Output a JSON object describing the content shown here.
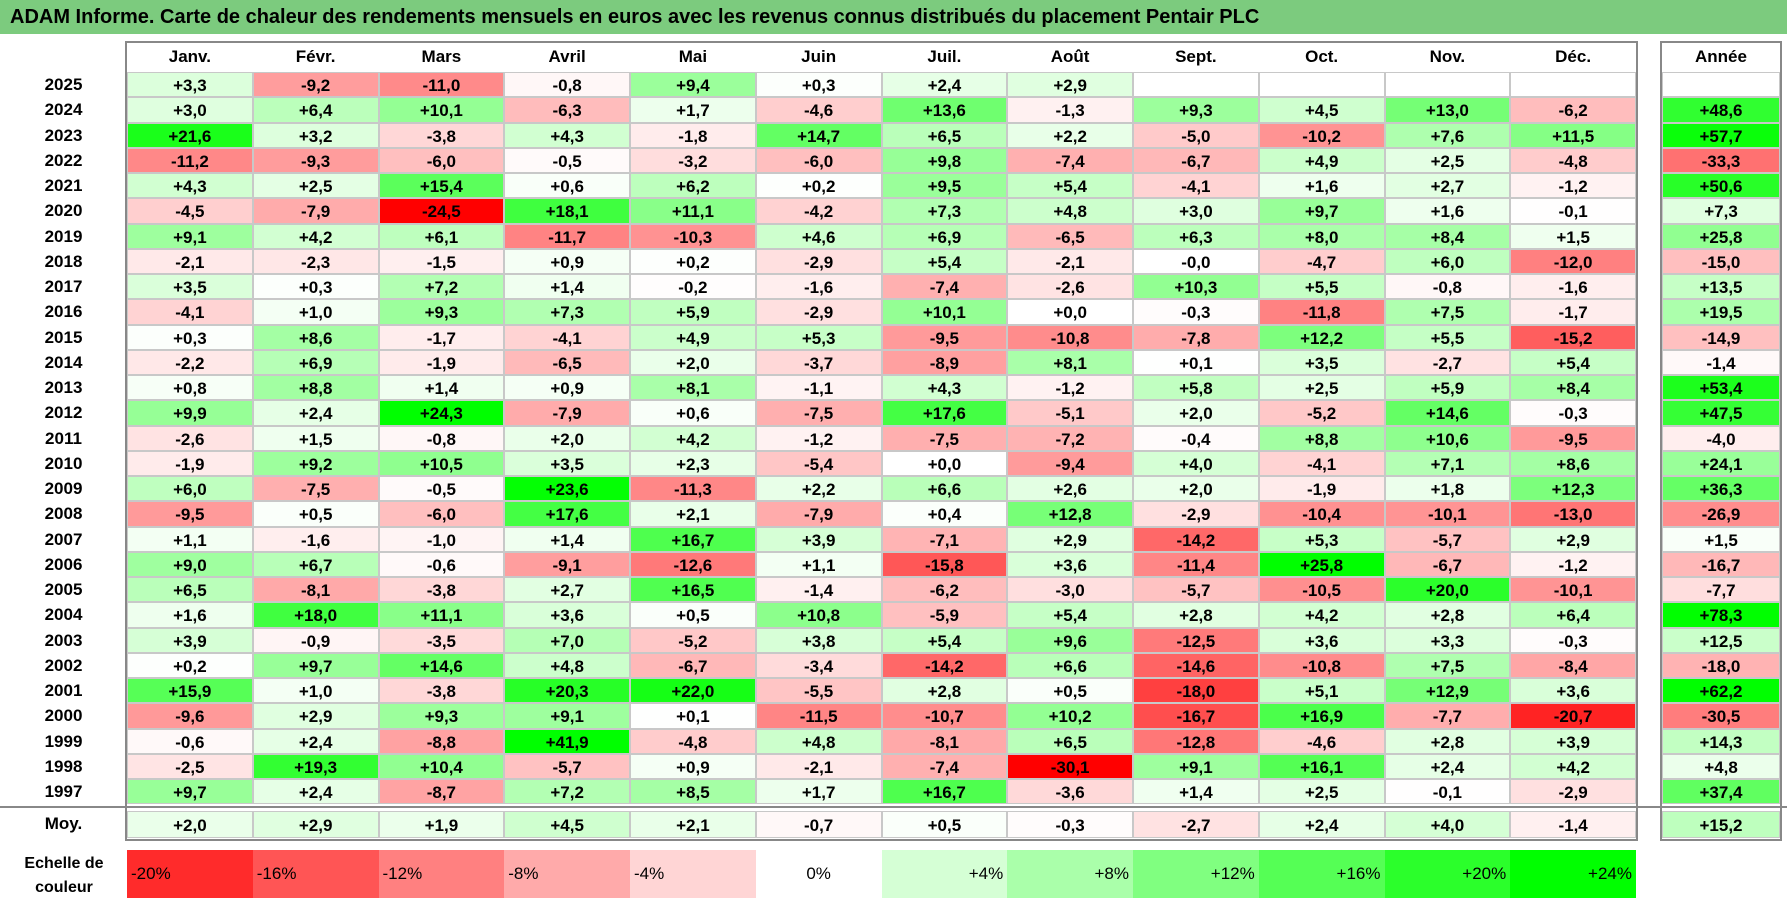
{
  "title": "ADAM Informe. Carte de chaleur des rendements mensuels en euros avec les revenus connus distribués du placement Pentair PLC",
  "chart_data": {
    "type": "heatmap",
    "title": "ADAM Informe. Carte de chaleur des rendements mensuels en euros avec les revenus connus distribués du placement Pentair PLC",
    "columns": [
      "Janv.",
      "Févr.",
      "Mars",
      "Avril",
      "Mai",
      "Juin",
      "Juil.",
      "Août",
      "Sept.",
      "Oct.",
      "Nov.",
      "Déc."
    ],
    "year_column": "Année",
    "rows": [
      {
        "label": "2025",
        "values": [
          "+3,3",
          "-9,2",
          "-11,0",
          "-0,8",
          "+9,4",
          "+0,3",
          "+2,4",
          "+2,9",
          "",
          "",
          "",
          ""
        ],
        "year": ""
      },
      {
        "label": "2024",
        "values": [
          "+3,0",
          "+6,4",
          "+10,1",
          "-6,3",
          "+1,7",
          "-4,6",
          "+13,6",
          "-1,3",
          "+9,3",
          "+4,5",
          "+13,0",
          "-6,2"
        ],
        "year": "+48,6"
      },
      {
        "label": "2023",
        "values": [
          "+21,6",
          "+3,2",
          "-3,8",
          "+4,3",
          "-1,8",
          "+14,7",
          "+6,5",
          "+2,2",
          "-5,0",
          "-10,2",
          "+7,6",
          "+11,5"
        ],
        "year": "+57,7"
      },
      {
        "label": "2022",
        "values": [
          "-11,2",
          "-9,3",
          "-6,0",
          "-0,5",
          "-3,2",
          "-6,0",
          "+9,8",
          "-7,4",
          "-6,7",
          "+4,9",
          "+2,5",
          "-4,8"
        ],
        "year": "-33,3"
      },
      {
        "label": "2021",
        "values": [
          "+4,3",
          "+2,5",
          "+15,4",
          "+0,6",
          "+6,2",
          "+0,2",
          "+9,5",
          "+5,4",
          "-4,1",
          "+1,6",
          "+2,7",
          "-1,2"
        ],
        "year": "+50,6"
      },
      {
        "label": "2020",
        "values": [
          "-4,5",
          "-7,9",
          "-24,5",
          "+18,1",
          "+11,1",
          "-4,2",
          "+7,3",
          "+4,8",
          "+3,0",
          "+9,7",
          "+1,6",
          "-0,1"
        ],
        "year": "+7,3"
      },
      {
        "label": "2019",
        "values": [
          "+9,1",
          "+4,2",
          "+6,1",
          "-11,7",
          "-10,3",
          "+4,6",
          "+6,9",
          "-6,5",
          "+6,3",
          "+8,0",
          "+8,4",
          "+1,5"
        ],
        "year": "+25,8"
      },
      {
        "label": "2018",
        "values": [
          "-2,1",
          "-2,3",
          "-1,5",
          "+0,9",
          "+0,2",
          "-2,9",
          "+5,4",
          "-2,1",
          "-0,0",
          "-4,7",
          "+6,0",
          "-12,0"
        ],
        "year": "-15,0"
      },
      {
        "label": "2017",
        "values": [
          "+3,5",
          "+0,3",
          "+7,2",
          "+1,4",
          "-0,2",
          "-1,6",
          "-7,4",
          "-2,6",
          "+10,3",
          "+5,5",
          "-0,8",
          "-1,6"
        ],
        "year": "+13,5"
      },
      {
        "label": "2016",
        "values": [
          "-4,1",
          "+1,0",
          "+9,3",
          "+7,3",
          "+5,9",
          "-2,9",
          "+10,1",
          "+0,0",
          "-0,3",
          "-11,8",
          "+7,5",
          "-1,7"
        ],
        "year": "+19,5"
      },
      {
        "label": "2015",
        "values": [
          "+0,3",
          "+8,6",
          "-1,7",
          "-4,1",
          "+4,9",
          "+5,3",
          "-9,5",
          "-10,8",
          "-7,8",
          "+12,2",
          "+5,5",
          "-15,2"
        ],
        "year": "-14,9"
      },
      {
        "label": "2014",
        "values": [
          "-2,2",
          "+6,9",
          "-1,9",
          "-6,5",
          "+2,0",
          "-3,7",
          "-8,9",
          "+8,1",
          "+0,1",
          "+3,5",
          "-2,7",
          "+5,4"
        ],
        "year": "-1,4"
      },
      {
        "label": "2013",
        "values": [
          "+0,8",
          "+8,8",
          "+1,4",
          "+0,9",
          "+8,1",
          "-1,1",
          "+4,3",
          "-1,2",
          "+5,8",
          "+2,5",
          "+5,9",
          "+8,4"
        ],
        "year": "+53,4"
      },
      {
        "label": "2012",
        "values": [
          "+9,9",
          "+2,4",
          "+24,3",
          "-7,9",
          "+0,6",
          "-7,5",
          "+17,6",
          "-5,1",
          "+2,0",
          "-5,2",
          "+14,6",
          "-0,3"
        ],
        "year": "+47,5"
      },
      {
        "label": "2011",
        "values": [
          "-2,6",
          "+1,5",
          "-0,8",
          "+2,0",
          "+4,2",
          "-1,2",
          "-7,5",
          "-7,2",
          "-0,4",
          "+8,8",
          "+10,6",
          "-9,5"
        ],
        "year": "-4,0"
      },
      {
        "label": "2010",
        "values": [
          "-1,9",
          "+9,2",
          "+10,5",
          "+3,5",
          "+2,3",
          "-5,4",
          "+0,0",
          "-9,4",
          "+4,0",
          "-4,1",
          "+7,1",
          "+8,6"
        ],
        "year": "+24,1"
      },
      {
        "label": "2009",
        "values": [
          "+6,0",
          "-7,5",
          "-0,5",
          "+23,6",
          "-11,3",
          "+2,2",
          "+6,6",
          "+2,6",
          "+2,0",
          "-1,9",
          "+1,8",
          "+12,3"
        ],
        "year": "+36,3"
      },
      {
        "label": "2008",
        "values": [
          "-9,5",
          "+0,5",
          "-6,0",
          "+17,6",
          "+2,1",
          "-7,9",
          "+0,4",
          "+12,8",
          "-2,9",
          "-10,4",
          "-10,1",
          "-13,0"
        ],
        "year": "-26,9"
      },
      {
        "label": "2007",
        "values": [
          "+1,1",
          "-1,6",
          "-1,0",
          "+1,4",
          "+16,7",
          "+3,9",
          "-7,1",
          "+2,9",
          "-14,2",
          "+5,3",
          "-5,7",
          "+2,9"
        ],
        "year": "+1,5"
      },
      {
        "label": "2006",
        "values": [
          "+9,0",
          "+6,7",
          "-0,6",
          "-9,1",
          "-12,6",
          "+1,1",
          "-15,8",
          "+3,6",
          "-11,4",
          "+25,8",
          "-6,7",
          "-1,2"
        ],
        "year": "-16,7"
      },
      {
        "label": "2005",
        "values": [
          "+6,5",
          "-8,1",
          "-3,8",
          "+2,7",
          "+16,5",
          "-1,4",
          "-6,2",
          "-3,0",
          "-5,7",
          "-10,5",
          "+20,0",
          "-10,1"
        ],
        "year": "-7,7"
      },
      {
        "label": "2004",
        "values": [
          "+1,6",
          "+18,0",
          "+11,1",
          "+3,6",
          "+0,5",
          "+10,8",
          "-5,9",
          "+5,4",
          "+2,8",
          "+4,2",
          "+2,8",
          "+6,4"
        ],
        "year": "+78,3"
      },
      {
        "label": "2003",
        "values": [
          "+3,9",
          "-0,9",
          "-3,5",
          "+7,0",
          "-5,2",
          "+3,8",
          "+5,4",
          "+9,6",
          "-12,5",
          "+3,6",
          "+3,3",
          "-0,3"
        ],
        "year": "+12,5"
      },
      {
        "label": "2002",
        "values": [
          "+0,2",
          "+9,7",
          "+14,6",
          "+4,8",
          "-6,7",
          "-3,4",
          "-14,2",
          "+6,6",
          "-14,6",
          "-10,8",
          "+7,5",
          "-8,4"
        ],
        "year": "-18,0"
      },
      {
        "label": "2001",
        "values": [
          "+15,9",
          "+1,0",
          "-3,8",
          "+20,3",
          "+22,0",
          "-5,5",
          "+2,8",
          "+0,5",
          "-18,0",
          "+5,1",
          "+12,9",
          "+3,6"
        ],
        "year": "+62,2"
      },
      {
        "label": "2000",
        "values": [
          "-9,6",
          "+2,9",
          "+9,3",
          "+9,1",
          "+0,1",
          "-11,5",
          "-10,7",
          "+10,2",
          "-16,7",
          "+16,9",
          "-7,7",
          "-20,7"
        ],
        "year": "-30,5"
      },
      {
        "label": "1999",
        "values": [
          "-0,6",
          "+2,4",
          "-8,8",
          "+41,9",
          "-4,8",
          "+4,8",
          "-8,1",
          "+6,5",
          "-12,8",
          "-4,6",
          "+2,8",
          "+3,9"
        ],
        "year": "+14,3"
      },
      {
        "label": "1998",
        "values": [
          "-2,5",
          "+19,3",
          "+10,4",
          "-5,7",
          "+0,9",
          "-2,1",
          "-7,4",
          "-30,1",
          "+9,1",
          "+16,1",
          "+2,4",
          "+4,2"
        ],
        "year": "+4,8"
      },
      {
        "label": "1997",
        "values": [
          "+9,7",
          "+2,4",
          "-8,7",
          "+7,2",
          "+8,5",
          "+1,7",
          "+16,7",
          "-3,6",
          "+1,4",
          "+2,5",
          "-0,1",
          "-2,9"
        ],
        "year": "+37,4"
      }
    ],
    "average": {
      "label": "Moy.",
      "values": [
        "+2,0",
        "+2,9",
        "+1,9",
        "+4,5",
        "+2,1",
        "-0,7",
        "+0,5",
        "-0,3",
        "-2,7",
        "+2,4",
        "+4,0",
        "-1,4"
      ],
      "year": "+15,2"
    },
    "scale": {
      "caption": "Echelle de couleur",
      "items": [
        "-20%",
        "-16%",
        "-12%",
        "-8%",
        "-4%",
        "0%",
        "+4%",
        "+8%",
        "+12%",
        "+16%",
        "+20%",
        "+24%"
      ]
    }
  },
  "colors": {
    "title_bg": "#7ccb7e",
    "negative_full": "#ff0000",
    "positive_full": "#00ff00",
    "neutral": "#ffffff",
    "grid": "#bfbfbf"
  }
}
